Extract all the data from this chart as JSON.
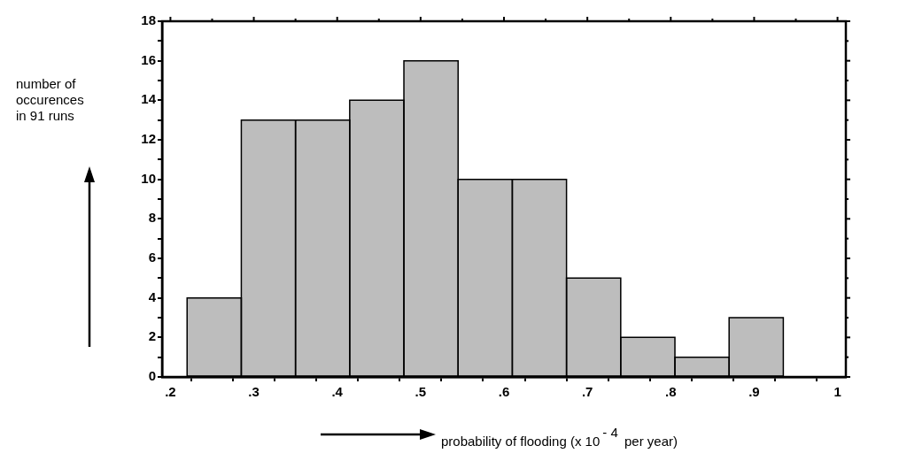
{
  "chart_data": {
    "type": "histogram",
    "ylabel": "number of occurences in 91 runs",
    "xlabel": "probability of flooding (x  10$^{- 4}$ per year)",
    "bins": [
      0.22,
      0.285,
      0.35,
      0.415,
      0.48,
      0.545,
      0.61,
      0.675,
      0.74,
      0.805,
      0.87,
      0.935
    ],
    "values": [
      4,
      13,
      13,
      14,
      16,
      10,
      10,
      5,
      2,
      1,
      3
    ],
    "color": "#bdbdbd",
    "xlim": [
      0.19,
      1.01
    ],
    "xticks": [
      {
        "value": 0.2,
        "label": ".2"
      },
      {
        "value": 0.25,
        "label": null
      },
      {
        "value": 0.3,
        "label": ".3"
      },
      {
        "value": 0.35,
        "label": null
      },
      {
        "value": 0.4,
        "label": ".4"
      },
      {
        "value": 0.45,
        "label": null
      },
      {
        "value": 0.5,
        "label": ".5"
      },
      {
        "value": 0.55,
        "label": null
      },
      {
        "value": 0.6,
        "label": ".6"
      },
      {
        "value": 0.65,
        "label": null
      },
      {
        "value": 0.7,
        "label": ".7"
      },
      {
        "value": 0.75,
        "label": null
      },
      {
        "value": 0.8,
        "label": ".8"
      },
      {
        "value": 0.85,
        "label": null
      },
      {
        "value": 0.9,
        "label": ".9"
      },
      {
        "value": 0.95,
        "label": null
      },
      1
    ],
    "ylim": [
      0,
      18
    ],
    "yticks": [
      0,
      {
        "value": 1,
        "label": null
      },
      2,
      {
        "value": 3,
        "label": null
      },
      4,
      {
        "value": 5,
        "label": null
      },
      6,
      {
        "value": 7,
        "label": null
      },
      8,
      {
        "value": 9,
        "label": null
      },
      10,
      {
        "value": 11,
        "label": null
      },
      12,
      {
        "value": 13,
        "label": null
      },
      14,
      {
        "value": 15,
        "label": null
      },
      16,
      {
        "value": 17,
        "label": null
      },
      18
    ]
  }
}
